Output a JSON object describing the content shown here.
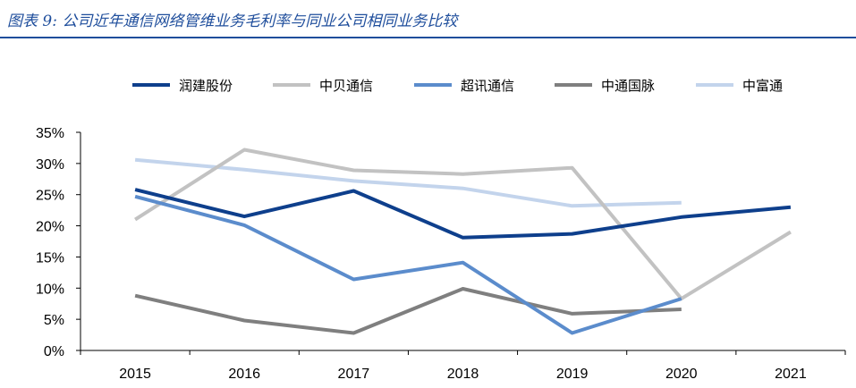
{
  "title": "图表 9:  公司近年通信网络管维业务毛利率与同业公司相同业务比较",
  "colors": {
    "title": "#1f4e9c"
  },
  "chart_data": {
    "type": "line",
    "title": "",
    "xlabel": "",
    "ylabel": "",
    "x": [
      "2015",
      "2016",
      "2017",
      "2018",
      "2019",
      "2020",
      "2021"
    ],
    "ylim": [
      0,
      35
    ],
    "y_ticks": [
      "0%",
      "5%",
      "10%",
      "15%",
      "20%",
      "25%",
      "30%",
      "35%"
    ],
    "grid": false,
    "legend_position": "top",
    "series": [
      {
        "name": "润建股份",
        "color": "#0e3f8c",
        "values": [
          25.8,
          21.5,
          25.6,
          18.1,
          18.7,
          21.4,
          23.0
        ]
      },
      {
        "name": "中贝通信",
        "color": "#c2c2c2",
        "values": [
          21.0,
          32.2,
          28.9,
          28.3,
          29.3,
          8.3,
          19.0
        ]
      },
      {
        "name": "超讯通信",
        "color": "#5b8ccc",
        "values": [
          24.7,
          20.1,
          11.4,
          14.1,
          2.8,
          8.3,
          null
        ]
      },
      {
        "name": "中通国脉",
        "color": "#7f7f7f",
        "values": [
          8.8,
          4.8,
          2.8,
          9.9,
          5.9,
          6.6,
          null
        ]
      },
      {
        "name": "中富通",
        "color": "#c3d4ec",
        "values": [
          30.6,
          29.0,
          27.2,
          26.0,
          23.2,
          23.7,
          null
        ]
      }
    ]
  }
}
